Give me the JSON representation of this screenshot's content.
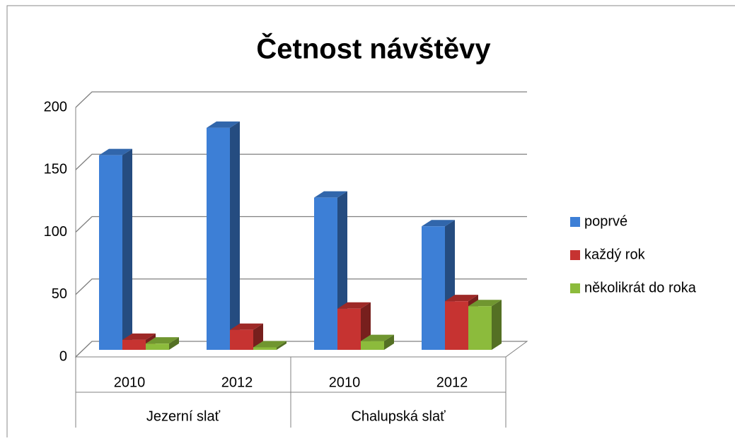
{
  "chart_data": {
    "type": "bar3d",
    "title": "Četnost návštěvy",
    "categories": [
      "2010",
      "2012",
      "2010",
      "2012"
    ],
    "category_groups": [
      "Jezerní slať",
      "Chalupská slať"
    ],
    "series": [
      {
        "name": "poprvé",
        "color": "#3d7fd6",
        "values": [
          156,
          178,
          122,
          99
        ]
      },
      {
        "name": "každý rok",
        "color": "#c63331",
        "values": [
          8,
          16,
          33,
          39
        ]
      },
      {
        "name": "několikrát do roka",
        "color": "#8cbb3c",
        "values": [
          5,
          2,
          7,
          35
        ]
      }
    ],
    "ylim": [
      0,
      200
    ],
    "yticks": [
      0,
      50,
      100,
      150,
      200
    ],
    "grid": true,
    "legend": "right"
  }
}
